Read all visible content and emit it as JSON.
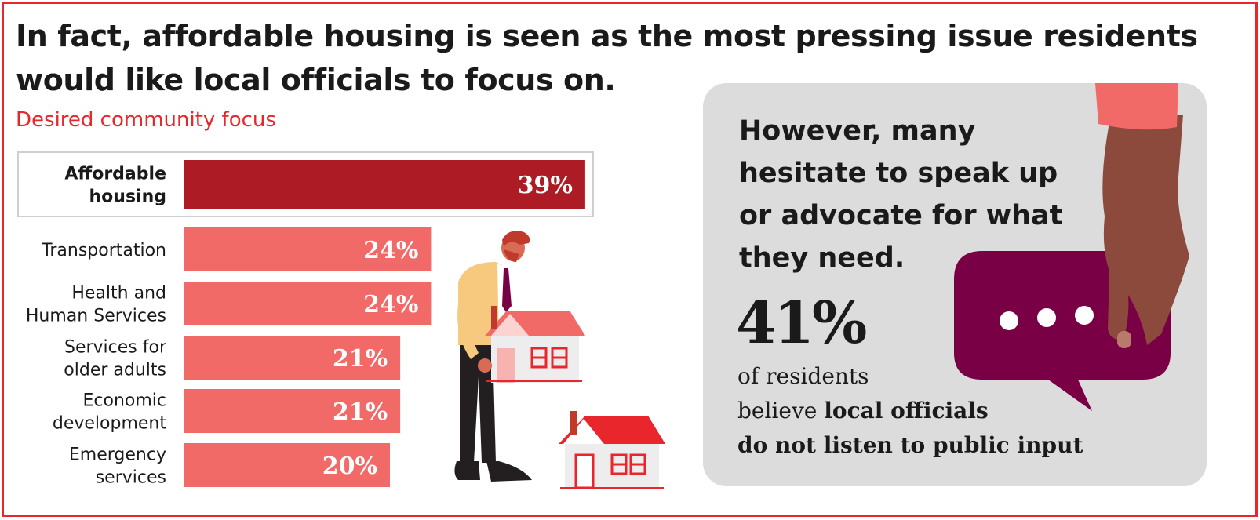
{
  "headline": "In fact, affordable housing is seen as the most pressing issue residents would like local officials to focus on.",
  "chart_data": {
    "type": "bar",
    "orientation": "horizontal",
    "title": "Desired community focus",
    "categories": [
      "Affordable housing",
      "Transportation",
      "Health and Human Services",
      "Services for older adults",
      "Economic development",
      "Emergency services"
    ],
    "category_lines": [
      [
        "Affordable",
        "housing"
      ],
      [
        "Transportation"
      ],
      [
        "Health and",
        "Human Services"
      ],
      [
        "Services for",
        "older adults"
      ],
      [
        "Economic",
        "development"
      ],
      [
        "Emergency",
        "services"
      ]
    ],
    "values": [
      39,
      24,
      24,
      21,
      21,
      20
    ],
    "value_labels": [
      "39%",
      "24%",
      "24%",
      "21%",
      "21%",
      "20%"
    ],
    "highlight_index": 0,
    "colors": {
      "highlight": "#ad1c24",
      "default": "#f26a68"
    },
    "unit": "%"
  },
  "callout": {
    "heading": "However, many hesitate to speak up or advocate for what they need.",
    "stat_value": "41%",
    "stat_text_plain": "of residents",
    "stat_text_plain2": "believe ",
    "stat_text_bold": "local officials",
    "stat_text_bold2": "do not listen to public input"
  },
  "illustrations": {
    "person": "person-holding-house-icon",
    "house": "house-icon",
    "hand": "hand-icon",
    "speech_bubble": "speech-bubble-icon"
  },
  "colors": {
    "accent": "#e8262b",
    "panel_bg": "#dcdcdc",
    "bubble": "#7a0046",
    "skin": "#8b4a3c",
    "sleeve": "#f26a68"
  }
}
